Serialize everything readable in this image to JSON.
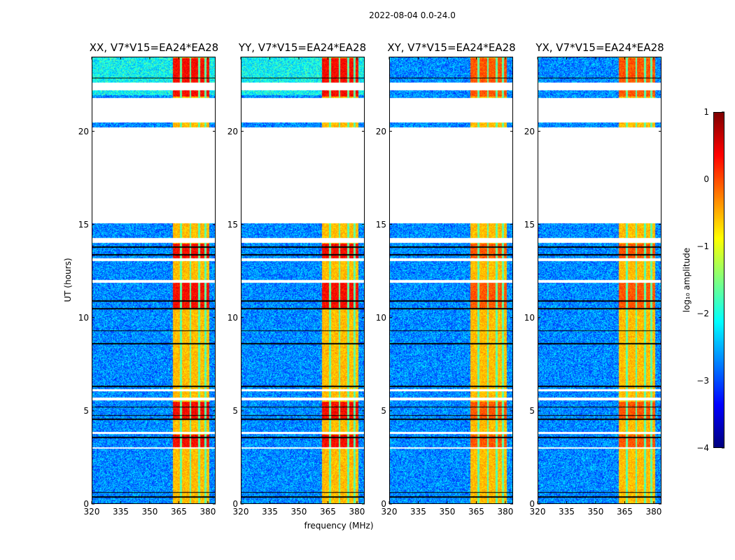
{
  "suptitle": "2022-08-04 0.0-24.0",
  "chart_data": {
    "type": "heatmap",
    "xlabel": "frequency (MHz)",
    "ylabel": "UT (hours)",
    "xlim": [
      320,
      384
    ],
    "ylim": [
      0,
      24
    ],
    "xticks": [
      "320",
      "335",
      "350",
      "365",
      "380"
    ],
    "yticks": [
      "0",
      "5",
      "10",
      "15",
      "20"
    ],
    "panels": [
      {
        "title": "XX, V7*V15=EA24*EA28"
      },
      {
        "title": "YY, V7*V15=EA24*EA28"
      },
      {
        "title": "XY, V7*V15=EA24*EA28"
      },
      {
        "title": "YX, V7*V15=EA24*EA28"
      }
    ],
    "colorbar": {
      "label": "log₁₀ amplitude",
      "range": [
        -4,
        1
      ],
      "ticks": [
        "1",
        "0",
        "−1",
        "−2",
        "−3",
        "−4"
      ],
      "colormap": "jet"
    },
    "background_level": -2.7,
    "rfi_band_mhz": [
      362,
      381
    ],
    "rfi_level": -0.5,
    "flagged_ut_ranges": [
      [
        15.1,
        20.25
      ],
      [
        20.5,
        21.85
      ],
      [
        22.25,
        22.65
      ],
      [
        14.05,
        14.3
      ],
      [
        13.05,
        13.2
      ],
      [
        11.9,
        12.05
      ],
      [
        6.05,
        6.15
      ],
      [
        5.55,
        5.7
      ],
      [
        3.75,
        3.85
      ],
      [
        2.95,
        3.05
      ]
    ]
  }
}
